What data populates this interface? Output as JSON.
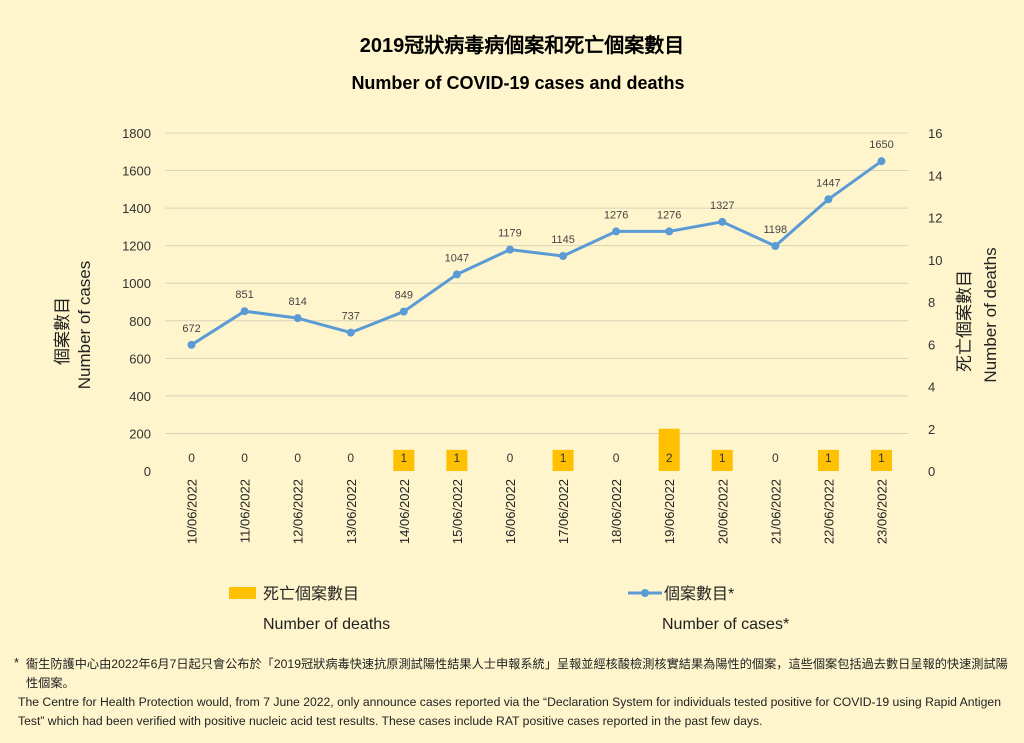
{
  "chart_data": {
    "type": "bar+line",
    "title_zh": "2019冠狀病毒病個案和死亡個案數目",
    "title_en": "Number of COVID-19 cases and deaths",
    "categories": [
      "10/06/2022",
      "11/06/2022",
      "12/06/2022",
      "13/06/2022",
      "14/06/2022",
      "15/06/2022",
      "16/06/2022",
      "17/06/2022",
      "18/06/2022",
      "19/06/2022",
      "20/06/2022",
      "21/06/2022",
      "22/06/2022",
      "23/06/2022"
    ],
    "series": [
      {
        "name": "個案數目*",
        "name_en": "Number of cases*",
        "type": "line",
        "axis": "left",
        "values": [
          672,
          851,
          814,
          737,
          849,
          1047,
          1179,
          1145,
          1276,
          1276,
          1327,
          1198,
          1447,
          1650
        ]
      },
      {
        "name": "死亡個案數目",
        "name_en": "Number of deaths",
        "type": "bar",
        "axis": "right",
        "values": [
          0,
          0,
          0,
          0,
          1,
          1,
          0,
          1,
          0,
          2,
          1,
          0,
          1,
          1
        ]
      }
    ],
    "y_left": {
      "label_zh": "個案數目",
      "label_en": "Number of cases",
      "ylim": [
        0,
        1800
      ],
      "ticks": [
        0,
        200,
        400,
        600,
        800,
        1000,
        1200,
        1400,
        1600,
        1800
      ]
    },
    "y_right": {
      "label_zh": "死亡個案數目",
      "label_en": "Number of deaths",
      "ylim": [
        0,
        16
      ],
      "ticks": [
        0,
        2,
        4,
        6,
        8,
        10,
        12,
        14,
        16
      ]
    },
    "grid": true,
    "legend": "bottom"
  },
  "colors": {
    "line": "#5b9bd5",
    "bar": "#ffc000",
    "grid": "#d9d3b8",
    "background": "#fef5cc"
  },
  "footnote": {
    "asterisk": "*",
    "zh": "衞生防護中心由2022年6月7日起只會公布於「2019冠狀病毒快速抗原測試陽性結果人士申報系統」呈報並經核酸檢測核實結果為陽性的個案，這些個案包括過去數日呈報的快速測試陽性個案。",
    "en": "The Centre for Health Protection would, from 7 June 2022, only announce cases reported via the “Declaration System for individuals tested positive for COVID-19 using Rapid Antigen Test” which had been verified with positive nucleic acid test results. These cases include RAT positive cases reported in the past few days."
  }
}
